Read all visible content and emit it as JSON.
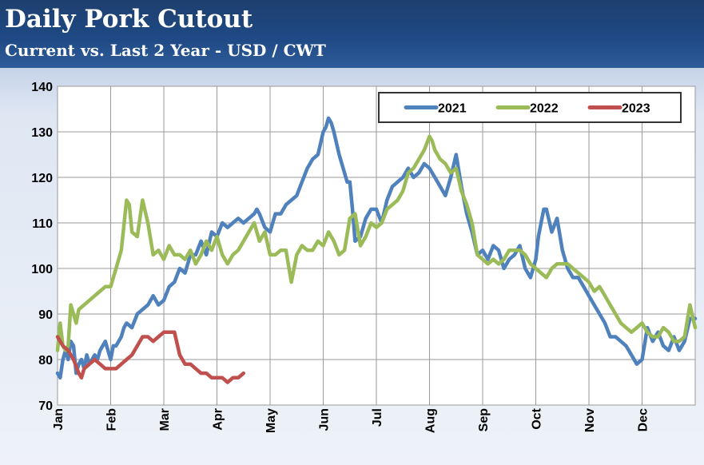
{
  "header": {
    "title": "Daily Pork Cutout",
    "subtitle": "Current vs. Last 2 Year - USD / CWT"
  },
  "colors": {
    "header_bg": "#1f4a86",
    "2021": "#4f81bd",
    "2022": "#9bbb59",
    "2023": "#c0504d"
  },
  "chart_data": {
    "type": "line",
    "title": "Daily Pork Cutout",
    "subtitle": "Current vs. Last 2 Year - USD / CWT",
    "xlabel": "",
    "ylabel": "",
    "ylim": [
      70,
      140
    ],
    "yticks": [
      70,
      80,
      90,
      100,
      110,
      120,
      130,
      140
    ],
    "xlim": [
      0,
      12
    ],
    "x_unit": "month of year (0 = Jan 1, 12 = Dec 31)",
    "xtick_labels": [
      "Jan",
      "Feb",
      "Mar",
      "Apr",
      "May",
      "Jun",
      "Jul",
      "Aug",
      "Sep",
      "Oct",
      "Nov",
      "Dec"
    ],
    "grid": true,
    "legend_position": "top-right",
    "series": [
      {
        "name": "2021",
        "color": "#4f81bd",
        "x": [
          0.0,
          0.05,
          0.1,
          0.15,
          0.2,
          0.25,
          0.3,
          0.35,
          0.4,
          0.45,
          0.5,
          0.55,
          0.6,
          0.7,
          0.75,
          0.8,
          0.9,
          1.0,
          1.05,
          1.1,
          1.2,
          1.25,
          1.3,
          1.4,
          1.5,
          1.6,
          1.7,
          1.8,
          1.9,
          2.0,
          2.1,
          2.2,
          2.3,
          2.4,
          2.5,
          2.6,
          2.7,
          2.8,
          2.9,
          3.0,
          3.1,
          3.2,
          3.3,
          3.4,
          3.5,
          3.6,
          3.7,
          3.75,
          3.8,
          3.9,
          4.0,
          4.1,
          4.2,
          4.3,
          4.4,
          4.5,
          4.6,
          4.7,
          4.8,
          4.9,
          5.0,
          5.05,
          5.1,
          5.15,
          5.2,
          5.3,
          5.4,
          5.45,
          5.5,
          5.55,
          5.6,
          5.7,
          5.8,
          5.9,
          6.0,
          6.1,
          6.2,
          6.3,
          6.4,
          6.5,
          6.6,
          6.7,
          6.8,
          6.9,
          7.0,
          7.1,
          7.2,
          7.3,
          7.4,
          7.5,
          7.6,
          7.7,
          7.8,
          7.9,
          8.0,
          8.1,
          8.2,
          8.3,
          8.4,
          8.5,
          8.6,
          8.7,
          8.8,
          8.9,
          9.0,
          9.05,
          9.1,
          9.15,
          9.2,
          9.3,
          9.4,
          9.5,
          9.6,
          9.7,
          9.8,
          9.9,
          10.0,
          10.1,
          10.2,
          10.3,
          10.4,
          10.5,
          10.6,
          10.7,
          10.8,
          10.9,
          11.0,
          11.1,
          11.2,
          11.3,
          11.4,
          11.5,
          11.6,
          11.7,
          11.8,
          11.9,
          12.0
        ],
        "values": [
          77,
          76,
          80,
          82,
          80,
          84,
          83,
          77,
          79,
          80,
          78,
          81,
          79,
          81,
          80,
          82,
          84,
          80,
          83,
          83,
          85,
          87,
          88,
          87,
          90,
          91,
          92,
          94,
          92,
          93,
          96,
          97,
          100,
          99,
          103,
          103,
          106,
          103,
          108,
          107,
          110,
          109,
          110,
          111,
          110,
          111,
          112,
          113,
          112,
          109,
          108,
          112,
          112,
          114,
          115,
          116,
          119,
          122,
          124,
          125,
          130,
          131,
          133,
          132,
          130,
          125,
          121,
          119,
          119,
          113,
          106,
          107,
          111,
          113,
          113,
          110,
          115,
          118,
          119,
          120,
          122,
          120,
          121,
          123,
          122,
          120,
          118,
          116,
          120,
          125,
          118,
          112,
          108,
          103,
          104,
          102,
          105,
          104,
          100,
          102,
          103,
          105,
          100,
          98,
          102,
          107,
          110,
          113,
          113,
          108,
          111,
          104,
          100,
          98,
          98,
          96,
          94,
          92,
          90,
          88,
          85,
          85,
          84,
          83,
          81,
          79,
          80,
          87,
          84,
          86,
          83,
          82,
          85,
          82,
          84,
          89,
          89
        ]
      },
      {
        "name": "2022",
        "color": "#9bbb59",
        "x": [
          0.0,
          0.05,
          0.1,
          0.15,
          0.2,
          0.25,
          0.3,
          0.35,
          0.4,
          0.5,
          0.6,
          0.7,
          0.8,
          0.9,
          1.0,
          1.1,
          1.2,
          1.3,
          1.35,
          1.4,
          1.5,
          1.6,
          1.7,
          1.8,
          1.9,
          2.0,
          2.1,
          2.2,
          2.3,
          2.4,
          2.5,
          2.6,
          2.7,
          2.8,
          2.9,
          3.0,
          3.1,
          3.2,
          3.3,
          3.4,
          3.5,
          3.6,
          3.7,
          3.8,
          3.9,
          4.0,
          4.1,
          4.2,
          4.3,
          4.4,
          4.5,
          4.6,
          4.7,
          4.8,
          4.9,
          5.0,
          5.1,
          5.2,
          5.3,
          5.4,
          5.5,
          5.6,
          5.7,
          5.8,
          5.9,
          6.0,
          6.1,
          6.2,
          6.3,
          6.4,
          6.5,
          6.6,
          6.7,
          6.8,
          6.9,
          7.0,
          7.05,
          7.1,
          7.2,
          7.3,
          7.4,
          7.5,
          7.6,
          7.7,
          7.8,
          7.9,
          8.0,
          8.1,
          8.2,
          8.3,
          8.4,
          8.5,
          8.6,
          8.7,
          8.8,
          8.9,
          9.0,
          9.1,
          9.2,
          9.3,
          9.4,
          9.5,
          9.6,
          9.7,
          9.8,
          9.9,
          10.0,
          10.1,
          10.2,
          10.3,
          10.4,
          10.5,
          10.6,
          10.7,
          10.8,
          10.9,
          11.0,
          11.1,
          11.2,
          11.3,
          11.4,
          11.5,
          11.6,
          11.7,
          11.8,
          11.9,
          12.0
        ],
        "values": [
          82,
          88,
          83,
          82,
          83,
          92,
          90,
          88,
          91,
          92,
          93,
          94,
          95,
          96,
          96,
          100,
          104,
          115,
          114,
          108,
          107,
          115,
          110,
          103,
          104,
          102,
          105,
          103,
          103,
          102,
          104,
          101,
          103,
          106,
          104,
          107,
          103,
          101,
          103,
          104,
          106,
          108,
          110,
          106,
          108,
          103,
          103,
          104,
          104,
          97,
          103,
          105,
          104,
          104,
          106,
          105,
          108,
          106,
          103,
          104,
          111,
          112,
          105,
          107,
          110,
          109,
          110,
          113,
          114,
          115,
          117,
          121,
          122,
          124,
          126,
          129,
          128,
          126,
          124,
          123,
          121,
          122,
          117,
          114,
          110,
          103,
          102,
          101,
          102,
          101,
          102,
          104,
          104,
          104,
          103,
          101,
          100,
          99,
          98,
          100,
          101,
          101,
          101,
          100,
          99,
          98,
          97,
          95,
          96,
          94,
          92,
          90,
          88,
          87,
          86,
          87,
          88,
          86,
          85,
          85,
          87,
          86,
          84,
          84,
          85,
          92,
          87
        ]
      },
      {
        "name": "2023",
        "color": "#c0504d",
        "x": [
          0.0,
          0.05,
          0.1,
          0.2,
          0.3,
          0.4,
          0.45,
          0.5,
          0.6,
          0.7,
          0.8,
          0.9,
          1.0,
          1.1,
          1.2,
          1.3,
          1.4,
          1.5,
          1.6,
          1.7,
          1.8,
          1.9,
          2.0,
          2.1,
          2.2,
          2.3,
          2.4,
          2.5,
          2.6,
          2.7,
          2.8,
          2.9,
          3.0,
          3.1,
          3.2,
          3.3,
          3.4,
          3.5
        ],
        "values": [
          85,
          84,
          83,
          82,
          80,
          77,
          76,
          78,
          79,
          80,
          79,
          78,
          78,
          78,
          79,
          80,
          81,
          83,
          85,
          85,
          84,
          85,
          86,
          86,
          86,
          81,
          79,
          79,
          78,
          77,
          77,
          76,
          76,
          76,
          75,
          76,
          76,
          77
        ]
      }
    ]
  }
}
